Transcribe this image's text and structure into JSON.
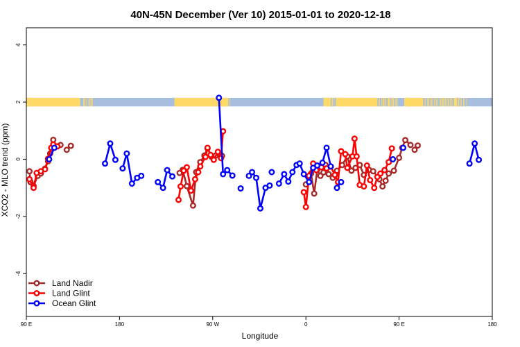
{
  "chart_data": {
    "type": "line",
    "title": "40N-45N December (Ver 10)   2015-01-01 to 2020-12-18",
    "xlabel": "Longitude",
    "ylabel": "XCO2 - MLO trend (ppm)",
    "xlim": [
      90,
      540
    ],
    "ylim": [
      -5.5,
      4.6
    ],
    "x_ticks": [
      {
        "value": 90,
        "label": "90 E"
      },
      {
        "value": 180,
        "label": "180"
      },
      {
        "value": 270,
        "label": "90 W"
      },
      {
        "value": 360,
        "label": "0"
      },
      {
        "value": 450,
        "label": "90 E"
      },
      {
        "value": 540,
        "label": "180"
      }
    ],
    "y_ticks": [
      {
        "value": -4,
        "label": "-4"
      },
      {
        "value": -2,
        "label": "-2"
      },
      {
        "value": 0,
        "label": "0"
      },
      {
        "value": 2,
        "label": "2"
      },
      {
        "value": 4,
        "label": "4"
      }
    ],
    "grid": false,
    "legend": "bottom-left",
    "land_ocean_band": {
      "y_range": [
        1.85,
        2.15
      ],
      "land_color": "#FFD966",
      "ocean_color": "#A7BEDE",
      "land_intervals": [
        [
          90,
          142
        ],
        [
          145,
          146
        ],
        [
          146.5,
          147
        ],
        [
          148,
          148.5
        ],
        [
          150,
          150.5
        ],
        [
          151,
          151.3
        ],
        [
          152,
          152.4
        ],
        [
          153,
          154
        ],
        [
          233,
          285
        ],
        [
          286,
          286.4
        ],
        [
          377,
          384
        ],
        [
          385,
          386
        ],
        [
          387,
          387.4
        ],
        [
          389,
          429
        ],
        [
          430,
          430.4
        ],
        [
          431,
          431.4
        ],
        [
          433,
          433.4
        ],
        [
          434,
          434.8
        ],
        [
          435,
          435.4
        ],
        [
          436,
          436.5
        ],
        [
          437,
          437.5
        ],
        [
          439,
          441
        ],
        [
          442,
          442.5
        ],
        [
          443,
          443.5
        ],
        [
          444,
          445
        ],
        [
          446,
          446.6
        ],
        [
          447,
          447.5
        ],
        [
          448,
          448.4
        ],
        [
          455,
          473
        ],
        [
          474,
          474.4
        ],
        [
          475,
          475.4
        ],
        [
          477,
          477.5
        ],
        [
          478,
          479
        ],
        [
          480,
          480.5
        ],
        [
          481,
          481.4
        ],
        [
          482,
          482.5
        ],
        [
          484,
          485
        ],
        [
          486,
          486.5
        ],
        [
          487,
          487.5
        ],
        [
          489,
          489.4
        ],
        [
          490,
          490.3
        ],
        [
          491,
          491.5
        ],
        [
          492,
          493
        ],
        [
          494,
          495
        ],
        [
          495.5,
          496
        ],
        [
          497,
          498
        ],
        [
          499,
          499.5
        ],
        [
          500,
          500.4
        ],
        [
          501,
          501.4
        ],
        [
          503,
          506
        ],
        [
          507,
          508
        ],
        [
          509,
          509.5
        ],
        [
          510,
          510.5
        ],
        [
          512,
          513
        ],
        [
          515,
          515.5
        ]
      ]
    },
    "series": [
      {
        "name": "Land Nadir",
        "color": "#A52A2A",
        "segments": [
          [
            [
              93,
              -0.42
            ],
            [
              94,
              -0.8
            ],
            [
              97,
              -0.93
            ],
            [
              101,
              -0.58
            ],
            [
              104,
              -0.5
            ],
            [
              108,
              -0.33
            ],
            [
              111,
              -0.07
            ],
            [
              113,
              0.2
            ],
            [
              116,
              0.68
            ],
            [
              118,
              0.45
            ],
            [
              123,
              0.5
            ]
          ],
          [
            [
              129,
              0.33
            ],
            [
              133,
              0.47
            ]
          ],
          [
            [
              238,
              -0.48
            ],
            [
              241,
              -0.37
            ],
            [
              245,
              -0.94
            ],
            [
              251,
              -1.62
            ],
            [
              254,
              -0.45
            ],
            [
              258,
              -0.1
            ],
            [
              262,
              0.13
            ],
            [
              265,
              0.38
            ],
            [
              269,
              0.08
            ],
            [
              273,
              0.13
            ],
            [
              276,
              0.2
            ],
            [
              279,
              0.12
            ]
          ],
          [
            [
              360,
              -0.88
            ],
            [
              365,
              -0.5
            ],
            [
              368,
              -1.2
            ],
            [
              371,
              -0.35
            ],
            [
              374,
              -0.58
            ],
            [
              377,
              -0.46
            ],
            [
              379,
              -0.2
            ],
            [
              382,
              -0.52
            ],
            [
              386,
              -0.65
            ],
            [
              390,
              -0.4
            ],
            [
              395,
              -0.2
            ],
            [
              400,
              0.1
            ],
            [
              404,
              -0.4
            ],
            [
              408,
              -0.3
            ],
            [
              412,
              -0.2
            ],
            [
              416,
              -0.55
            ],
            [
              421,
              -0.37
            ],
            [
              425,
              -0.42
            ],
            [
              431,
              -0.7
            ],
            [
              434,
              -0.95
            ],
            [
              437,
              -0.75
            ],
            [
              440,
              -0.5
            ],
            [
              445,
              -0.4
            ],
            [
              450,
              0.05
            ],
            [
              453,
              0.4
            ],
            [
              456,
              0.67
            ],
            [
              461,
              0.5
            ]
          ],
          [
            [
              465,
              0.33
            ],
            [
              468,
              0.48
            ]
          ]
        ]
      },
      {
        "name": "Land Glint",
        "color": "#FF0000",
        "segments": [
          [
            [
              93,
              -0.7
            ],
            [
              97,
              -1.0
            ],
            [
              100,
              -0.48
            ],
            [
              104,
              -0.42
            ],
            [
              108,
              -0.35
            ],
            [
              111,
              0.02
            ],
            [
              114,
              0.4
            ],
            [
              116,
              0.52
            ],
            [
              120,
              0.45
            ]
          ],
          [
            [
              237,
              -1.42
            ],
            [
              239,
              -0.95
            ],
            [
              242,
              -0.4
            ],
            [
              245,
              -0.28
            ],
            [
              249,
              -1.1
            ],
            [
              253,
              -0.7
            ],
            [
              256,
              -0.45
            ],
            [
              258,
              -0.25
            ],
            [
              263,
              0.08
            ],
            [
              265,
              0.4
            ],
            [
              268,
              0.15
            ],
            [
              271,
              -0.02
            ],
            [
              275,
              0.26
            ],
            [
              278,
              0.04
            ],
            [
              280,
              0.98
            ]
          ],
          [
            [
              358,
              -1.15
            ],
            [
              360,
              -1.67
            ],
            [
              363,
              -0.58
            ],
            [
              367,
              -0.15
            ],
            [
              370,
              -0.38
            ],
            [
              375,
              -0.28
            ],
            [
              380,
              -0.32
            ],
            [
              384,
              -0.26
            ],
            [
              388,
              -0.55
            ],
            [
              391,
              -0.8
            ],
            [
              394,
              0.28
            ],
            [
              398,
              0.18
            ],
            [
              400,
              -0.3
            ],
            [
              405,
              0.1
            ],
            [
              407,
              0.72
            ],
            [
              409,
              0.1
            ],
            [
              412,
              -0.9
            ],
            [
              416,
              -0.95
            ],
            [
              419,
              -0.22
            ],
            [
              422,
              -0.73
            ],
            [
              426,
              -1.0
            ],
            [
              429,
              -0.62
            ],
            [
              432,
              -0.5
            ],
            [
              436,
              -0.38
            ],
            [
              440,
              -0.1
            ],
            [
              443,
              0.38
            ]
          ]
        ]
      },
      {
        "name": "Ocean Glint",
        "color": "#0000FF",
        "segments": [
          [
            [
              112,
              0.0
            ],
            [
              117,
              0.4
            ]
          ],
          [
            [
              166,
              -0.15
            ],
            [
              171,
              0.55
            ],
            [
              176,
              -0.02
            ]
          ],
          [
            [
              183,
              -0.32
            ],
            [
              187,
              0.2
            ],
            [
              192,
              -0.85
            ],
            [
              197,
              -0.65
            ],
            [
              201,
              -0.58
            ]
          ],
          [
            [
              217,
              -0.8
            ],
            [
              222,
              -1.0
            ],
            [
              226,
              -0.38
            ],
            [
              231,
              -0.6
            ]
          ],
          [
            [
              276,
              2.15
            ],
            [
              280,
              -0.52
            ],
            [
              284,
              -0.38
            ],
            [
              289,
              -0.57
            ]
          ],
          [
            [
              297,
              -1.02
            ]
          ],
          [
            [
              305,
              -0.58
            ],
            [
              308,
              -0.45
            ],
            [
              312,
              -0.65
            ],
            [
              316,
              -1.72
            ],
            [
              321,
              -1.0
            ],
            [
              325,
              -0.92
            ]
          ],
          [
            [
              327,
              -0.45
            ]
          ],
          [
            [
              334,
              -0.85
            ],
            [
              339,
              -0.52
            ],
            [
              343,
              -0.78
            ],
            [
              347,
              -0.45
            ],
            [
              351,
              -0.2
            ],
            [
              354,
              -0.15
            ],
            [
              358,
              -0.52
            ],
            [
              363,
              -0.8
            ],
            [
              367,
              -0.3
            ],
            [
              371,
              -0.22
            ],
            [
              376,
              -0.12
            ],
            [
              380,
              0.4
            ],
            [
              384,
              -0.25
            ]
          ],
          [
            [
              390,
              -1.0
            ],
            [
              394,
              -0.8
            ]
          ],
          [
            [
              444,
              0.0
            ]
          ],
          [
            [
              454,
              0.4
            ]
          ],
          [
            [
              518,
              -0.15
            ],
            [
              523,
              0.55
            ],
            [
              527,
              -0.02
            ]
          ]
        ]
      }
    ]
  }
}
